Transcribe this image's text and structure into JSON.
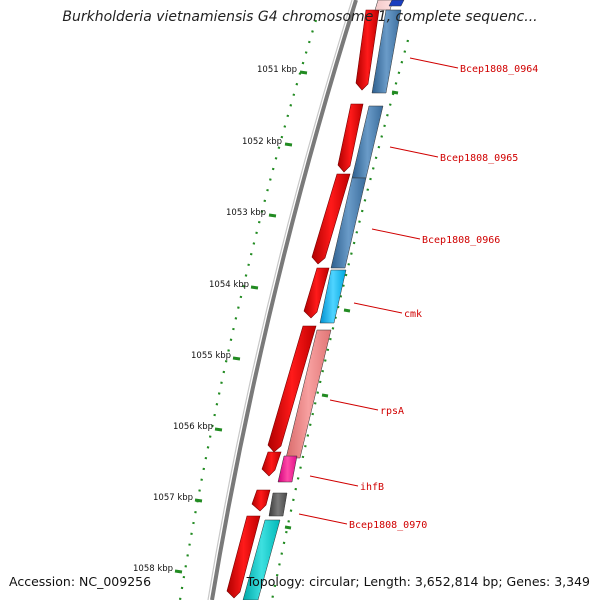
{
  "title": "Burkholderia vietnamiensis G4 chromosome 1, complete sequenc...",
  "footer": {
    "accession": "Accession: NC_009256",
    "summary": "Topology: circular; Length: 3,652,814 bp; Genes: 3,349"
  },
  "ticks": [
    "1051 kbp",
    "1052 kbp",
    "1053 kbp",
    "1054 kbp",
    "1055 kbp",
    "1056 kbp",
    "1057 kbp",
    "1058 kbp"
  ],
  "genes": [
    {
      "label": "Bcep1808_0964",
      "fwd_color": "#ff0000",
      "rev_color": "#4682b4"
    },
    {
      "label": "Bcep1808_0965",
      "fwd_color": "#ff0000",
      "rev_color": "#4682b4"
    },
    {
      "label": "Bcep1808_0966",
      "fwd_color": "#ff0000",
      "rev_color": "#4682b4"
    },
    {
      "label": "cmk",
      "fwd_color": "#ff0000",
      "rev_color": "#00bfff"
    },
    {
      "label": "rpsA",
      "fwd_color": "#ff0000",
      "rev_color": "#f08080"
    },
    {
      "label": "ihfB",
      "fwd_color": "#ff0000",
      "rev_color": "#ff1493"
    },
    {
      "label": "Bcep1808_0970",
      "fwd_color": "#ff0000",
      "rev_color": "#555555"
    }
  ],
  "colors": {
    "backbone": "#7a7a7a",
    "tick": "#228b22",
    "dots": "#228b22",
    "label": "#d00000"
  }
}
